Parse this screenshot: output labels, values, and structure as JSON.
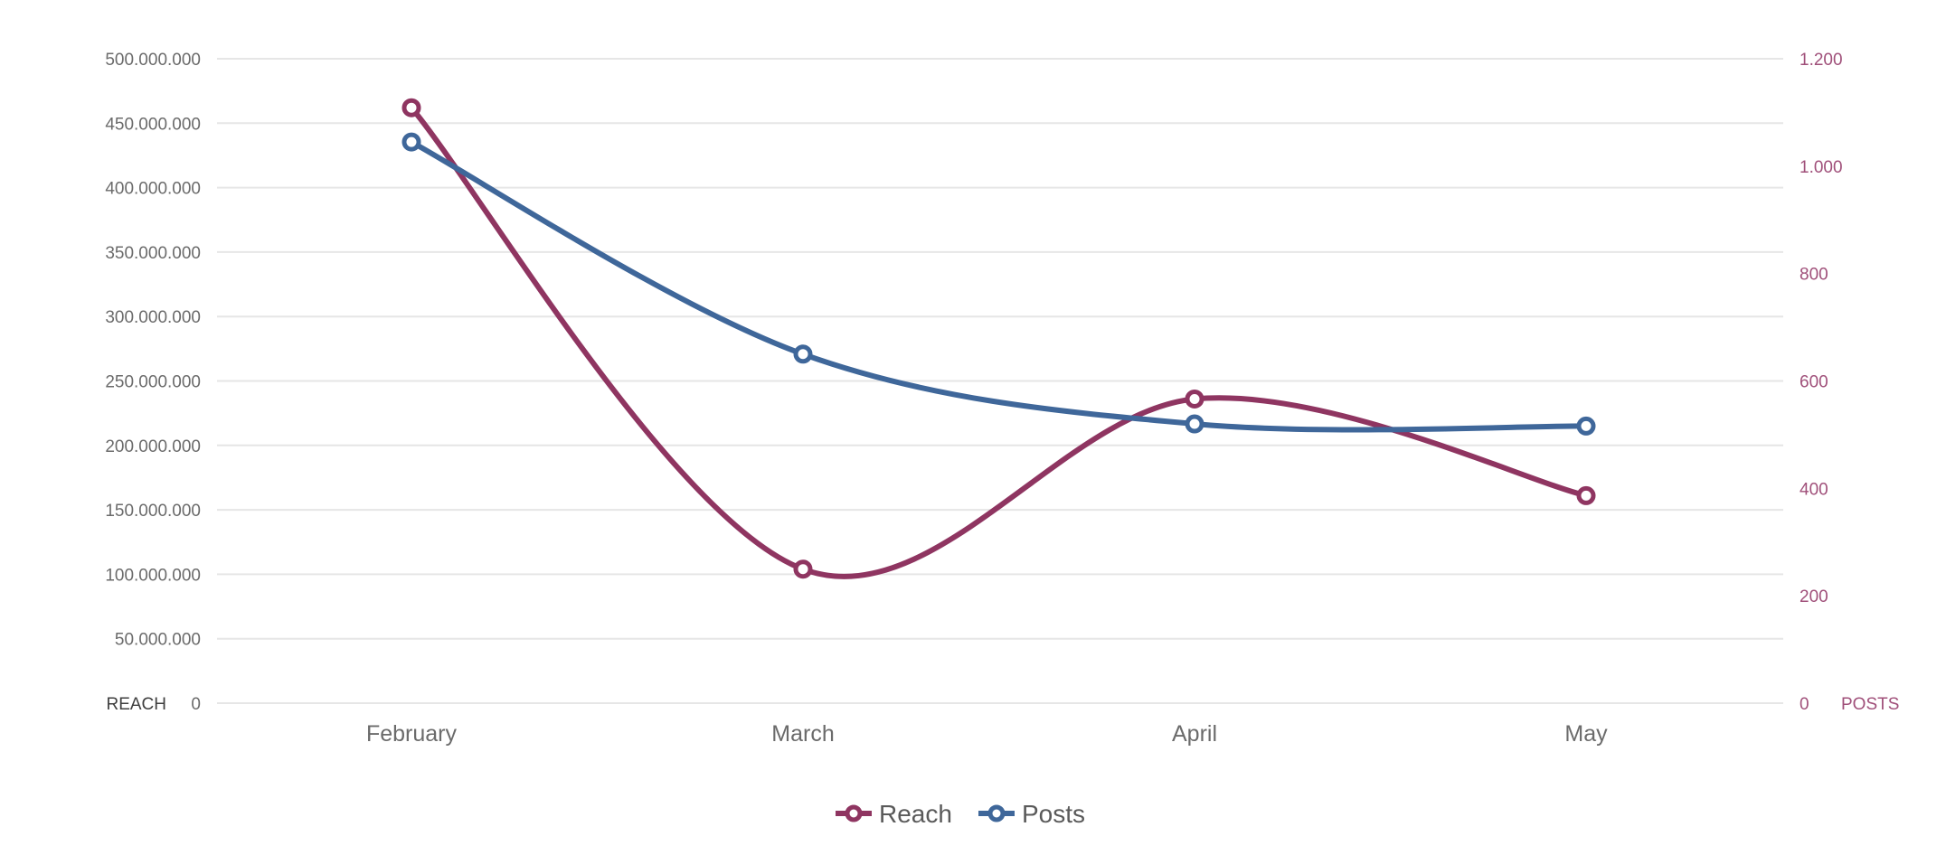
{
  "chart_data": {
    "type": "line",
    "categories": [
      "February",
      "March",
      "April",
      "May"
    ],
    "series": [
      {
        "name": "Reach",
        "axis": "left",
        "color": "#8f3561",
        "values": [
          462000000,
          104000000,
          236000000,
          161000000
        ]
      },
      {
        "name": "Posts",
        "axis": "right",
        "color": "#3f679a",
        "values": [
          1045,
          650,
          520,
          516
        ]
      }
    ],
    "y_left": {
      "label": "REACH",
      "range": [
        0,
        500000000
      ],
      "ticks": [
        "0",
        "50.000.000",
        "100.000.000",
        "150.000.000",
        "200.000.000",
        "250.000.000",
        "300.000.000",
        "350.000.000",
        "400.000.000",
        "450.000.000",
        "500.000.000"
      ],
      "tick_values": [
        0,
        50000000,
        100000000,
        150000000,
        200000000,
        250000000,
        300000000,
        350000000,
        400000000,
        450000000,
        500000000
      ]
    },
    "y_right": {
      "label": "POSTS",
      "range": [
        0,
        1200
      ],
      "ticks": [
        "0",
        "200",
        "400",
        "600",
        "800",
        "1.000",
        "1.200"
      ],
      "tick_values": [
        0,
        200,
        400,
        600,
        800,
        1000,
        1200
      ],
      "color": "#a0507a"
    },
    "grid": true,
    "legend": "bottom-center"
  }
}
